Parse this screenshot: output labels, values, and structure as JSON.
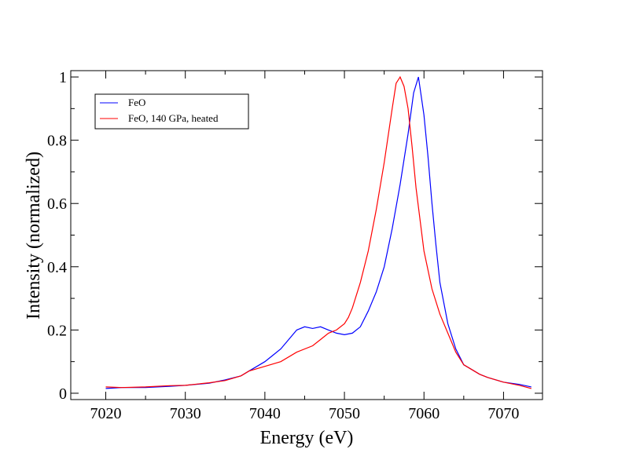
{
  "chart_data": {
    "type": "line",
    "title": "",
    "xlabel": "Energy (eV)",
    "ylabel": "Intensity (normalized)",
    "xlim": [
      7015.6,
      7074.9
    ],
    "ylim": [
      -0.02,
      1.02
    ],
    "x_ticks": [
      7020,
      7030,
      7040,
      7050,
      7060,
      7070
    ],
    "x_tick_labels": [
      "7020",
      "7030",
      "7040",
      "7050",
      "7060",
      "7070"
    ],
    "x_minor_ticks": [
      7025,
      7035,
      7045,
      7055,
      7065
    ],
    "y_ticks": [
      0,
      0.2,
      0.4,
      0.6,
      0.8,
      1
    ],
    "y_tick_labels": [
      "0",
      "0.2",
      "0.4",
      "0.6",
      "0.8",
      "1"
    ],
    "y_minor_ticks": [
      0.1,
      0.3,
      0.5,
      0.7,
      0.9
    ],
    "grid": false,
    "legend_position": "top-left",
    "series": [
      {
        "name": "FeO",
        "color": "#0000ff",
        "x": [
          7020,
          7022,
          7025,
          7028,
          7030,
          7033,
          7035,
          7037,
          7038,
          7039,
          7040,
          7041,
          7042,
          7043,
          7044,
          7045,
          7046,
          7047,
          7048,
          7049,
          7050,
          7051,
          7052,
          7053,
          7054,
          7055,
          7056,
          7057,
          7058,
          7058.7,
          7059.3,
          7060,
          7060.5,
          7061,
          7061.5,
          7062,
          7063,
          7064,
          7065,
          7066,
          7067,
          7068,
          7070,
          7072,
          7073.5
        ],
        "y": [
          0.015,
          0.018,
          0.018,
          0.022,
          0.025,
          0.032,
          0.042,
          0.055,
          0.07,
          0.085,
          0.1,
          0.12,
          0.14,
          0.17,
          0.2,
          0.21,
          0.205,
          0.21,
          0.2,
          0.19,
          0.185,
          0.19,
          0.21,
          0.26,
          0.32,
          0.4,
          0.52,
          0.66,
          0.82,
          0.95,
          1.0,
          0.88,
          0.75,
          0.6,
          0.47,
          0.35,
          0.22,
          0.14,
          0.09,
          0.075,
          0.06,
          0.05,
          0.035,
          0.028,
          0.02
        ]
      },
      {
        "name": "FeO, 140 GPa, heated",
        "color": "#ff0000",
        "x": [
          7020,
          7022,
          7025,
          7028,
          7030,
          7033,
          7035,
          7037,
          7038,
          7040,
          7042,
          7044,
          7046,
          7047,
          7048,
          7049,
          7050,
          7050.5,
          7051,
          7052,
          7053,
          7054,
          7055,
          7056,
          7056.5,
          7057,
          7057.5,
          7058,
          7058.5,
          7059,
          7060,
          7061,
          7062,
          7063,
          7064,
          7065,
          7066,
          7067,
          7068,
          7070,
          7072,
          7073.5
        ],
        "y": [
          0.02,
          0.018,
          0.02,
          0.024,
          0.025,
          0.033,
          0.04,
          0.055,
          0.07,
          0.085,
          0.1,
          0.13,
          0.15,
          0.17,
          0.19,
          0.2,
          0.22,
          0.24,
          0.27,
          0.35,
          0.45,
          0.58,
          0.73,
          0.9,
          0.98,
          1.0,
          0.97,
          0.9,
          0.78,
          0.65,
          0.45,
          0.33,
          0.25,
          0.19,
          0.13,
          0.09,
          0.075,
          0.06,
          0.05,
          0.035,
          0.025,
          0.015
        ]
      }
    ]
  }
}
